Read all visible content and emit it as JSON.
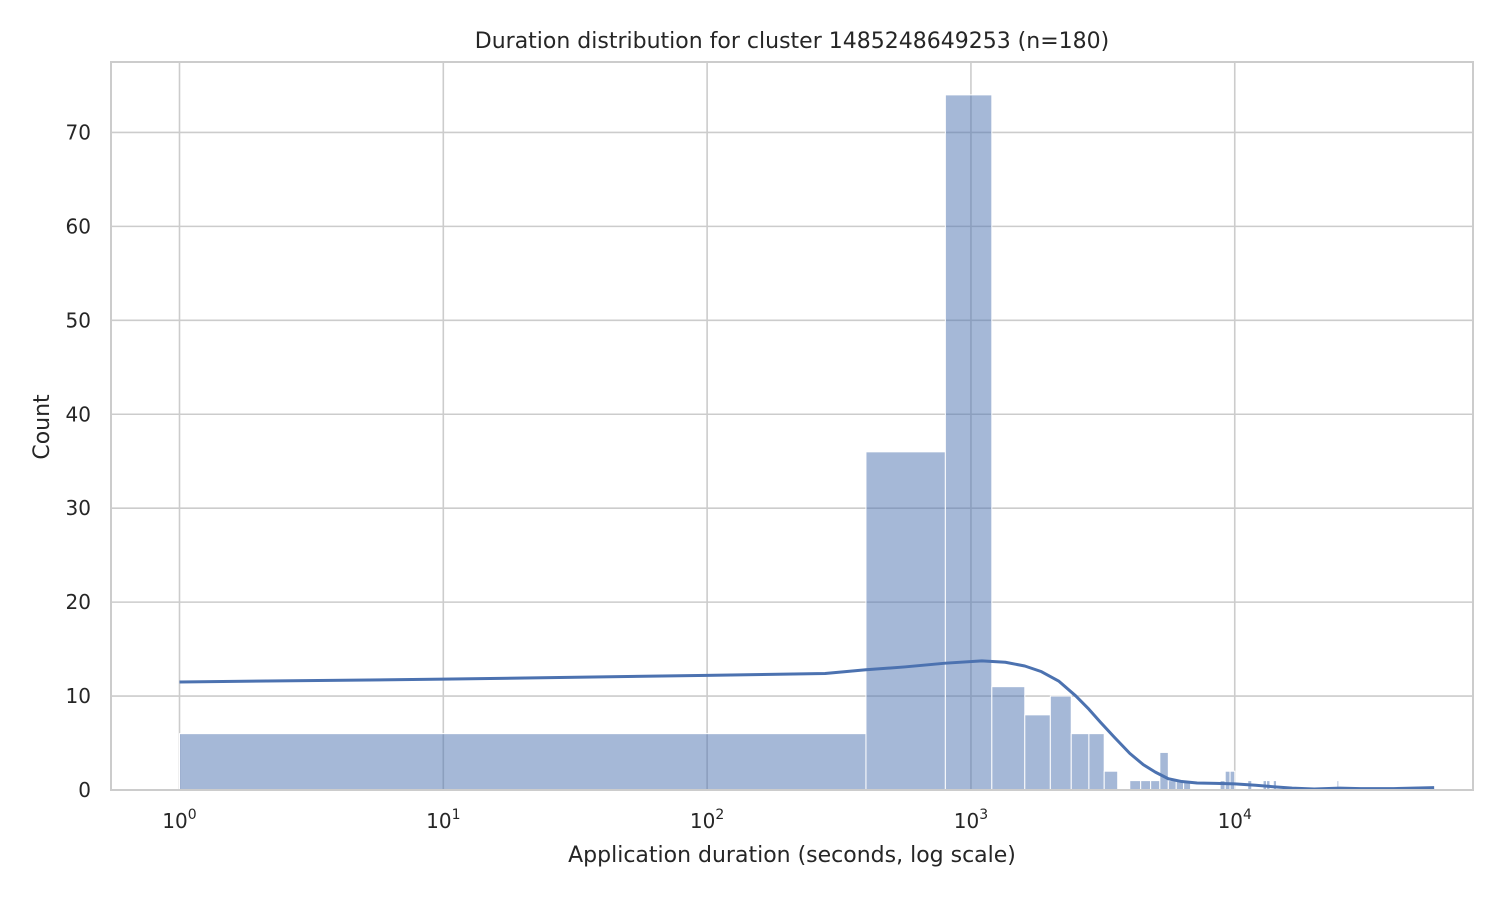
{
  "chart_data": {
    "type": "bar",
    "title": "Duration distribution for cluster 1485248649253 (n=180)",
    "xlabel": "Application duration (seconds, log scale)",
    "ylabel": "Count",
    "x_scale": "log",
    "xlim": [
      0.55,
      80000
    ],
    "ylim": [
      0,
      77.5
    ],
    "x_ticks": [
      {
        "value": 1,
        "base": "10",
        "exp": "0"
      },
      {
        "value": 10,
        "base": "10",
        "exp": "1"
      },
      {
        "value": 100,
        "base": "10",
        "exp": "2"
      },
      {
        "value": 1000,
        "base": "10",
        "exp": "3"
      },
      {
        "value": 10000,
        "base": "10",
        "exp": "4"
      }
    ],
    "y_ticks": [
      0,
      10,
      20,
      30,
      40,
      50,
      60,
      70
    ],
    "grid": true,
    "bar_color": "#4c72b0",
    "bar_opacity": 0.5,
    "line_color": "#4c72b0",
    "bars": [
      {
        "x0": 1,
        "x1": 400,
        "count": 6
      },
      {
        "x0": 400,
        "x1": 800,
        "count": 36
      },
      {
        "x0": 800,
        "x1": 1200,
        "count": 74
      },
      {
        "x0": 1200,
        "x1": 1600,
        "count": 11
      },
      {
        "x0": 1600,
        "x1": 2000,
        "count": 8
      },
      {
        "x0": 2000,
        "x1": 2400,
        "count": 10
      },
      {
        "x0": 2400,
        "x1": 2800,
        "count": 6
      },
      {
        "x0": 2800,
        "x1": 3200,
        "count": 6
      },
      {
        "x0": 3200,
        "x1": 3600,
        "count": 2
      },
      {
        "x0": 4000,
        "x1": 4400,
        "count": 1
      },
      {
        "x0": 4400,
        "x1": 4800,
        "count": 1
      },
      {
        "x0": 4800,
        "x1": 5200,
        "count": 1
      },
      {
        "x0": 5200,
        "x1": 5600,
        "count": 4
      },
      {
        "x0": 5600,
        "x1": 6000,
        "count": 1
      },
      {
        "x0": 6000,
        "x1": 6400,
        "count": 1
      },
      {
        "x0": 6400,
        "x1": 6800,
        "count": 1
      },
      {
        "x0": 8800,
        "x1": 9200,
        "count": 1
      },
      {
        "x0": 9200,
        "x1": 9600,
        "count": 2
      },
      {
        "x0": 9600,
        "x1": 10000,
        "count": 2
      },
      {
        "x0": 11200,
        "x1": 11600,
        "count": 1
      },
      {
        "x0": 12800,
        "x1": 13200,
        "count": 1
      },
      {
        "x0": 13200,
        "x1": 13600,
        "count": 1
      },
      {
        "x0": 14000,
        "x1": 14400,
        "count": 1
      },
      {
        "x0": 24400,
        "x1": 24800,
        "count": 1
      },
      {
        "x0": 56000,
        "x1": 56400,
        "count": 1
      }
    ],
    "kde": {
      "x": [
        1,
        10,
        100,
        280,
        400,
        560,
        800,
        1100,
        1350,
        1600,
        1850,
        2150,
        2500,
        2800,
        3100,
        3500,
        4000,
        4500,
        5000,
        5600,
        6300,
        7200,
        8500,
        10000,
        12000,
        14000,
        16500,
        20000,
        25000,
        30000,
        40000,
        57000
      ],
      "y": [
        11.5,
        11.8,
        12.2,
        12.4,
        12.8,
        13.1,
        13.5,
        13.75,
        13.6,
        13.2,
        12.6,
        11.6,
        10.0,
        8.6,
        7.2,
        5.6,
        3.9,
        2.7,
        1.9,
        1.2,
        0.9,
        0.75,
        0.7,
        0.65,
        0.5,
        0.35,
        0.2,
        0.1,
        0.2,
        0.15,
        0.15,
        0.25
      ]
    }
  }
}
